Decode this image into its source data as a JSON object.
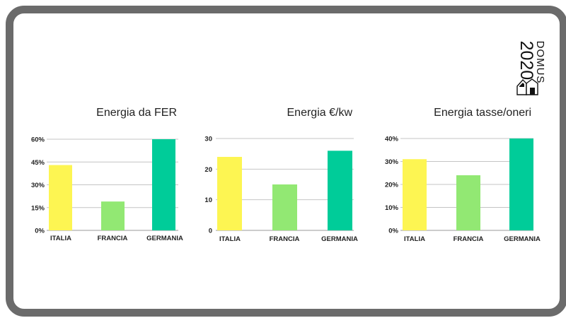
{
  "logo": {
    "word1": "DOMUS",
    "word2": "2020"
  },
  "chart_data": [
    {
      "type": "bar",
      "title": "Energia da FER",
      "categories": [
        "ITALIA",
        "FRANCIA",
        "GERMANIA"
      ],
      "values": [
        43,
        19,
        60
      ],
      "ylim": [
        0,
        60
      ],
      "yticks": [
        0,
        15,
        30,
        45,
        60
      ],
      "ytick_labels": [
        "0%",
        "15%",
        "30%",
        "45%",
        "60%"
      ],
      "colors": [
        "#fdf552",
        "#92e873",
        "#00cc99"
      ],
      "grid": true
    },
    {
      "type": "bar",
      "title": "Energia €/kw",
      "categories": [
        "ITALIA",
        "FRANCIA",
        "GERMANIA"
      ],
      "values": [
        24,
        15,
        26
      ],
      "ylim": [
        0,
        30
      ],
      "yticks": [
        0,
        10,
        20,
        30
      ],
      "ytick_labels": [
        "0",
        "10",
        "20",
        "30"
      ],
      "colors": [
        "#fdf552",
        "#92e873",
        "#00cc99"
      ],
      "grid": true
    },
    {
      "type": "bar",
      "title": "Energia tasse/oneri",
      "categories": [
        "ITALIA",
        "FRANCIA",
        "GERMANIA"
      ],
      "values": [
        31,
        24,
        40
      ],
      "ylim": [
        0,
        40
      ],
      "yticks": [
        0,
        10,
        20,
        30,
        40
      ],
      "ytick_labels": [
        "0%",
        "10%",
        "20%",
        "30%",
        "40%"
      ],
      "colors": [
        "#fdf552",
        "#92e873",
        "#00cc99"
      ],
      "grid": true
    }
  ]
}
